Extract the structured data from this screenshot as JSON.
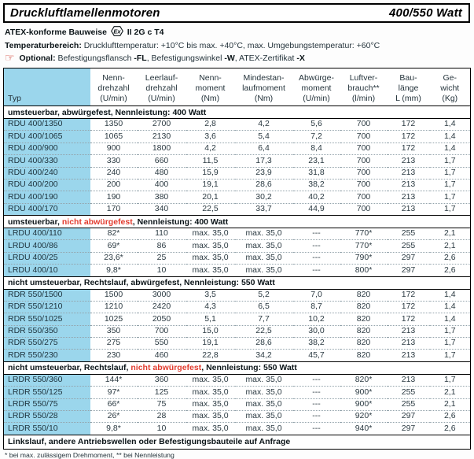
{
  "header": {
    "title": "Druckluftlamellenmotoren",
    "wattage": "400/550 Watt"
  },
  "info": {
    "atex": {
      "prefix": "ATEX-konforme Bauweise",
      "ex_symbol": "Ex",
      "suffix": "II 2G c T4"
    },
    "temp": {
      "label": "Temperaturbereich:",
      "text": "Drucklufttemperatur: +10°C bis max. +40°C, max. Umgebungstemperatur: +60°C"
    },
    "optional": {
      "icon": "pointing-hand",
      "label": "Optional:",
      "parts": [
        {
          "t": "Befestigungsflansch "
        },
        {
          "t": "-FL",
          "bold": true
        },
        {
          "t": ", Befestigungswinkel "
        },
        {
          "t": "-W",
          "bold": true
        },
        {
          "t": ", ATEX-Zertifikat "
        },
        {
          "t": "-X",
          "bold": true
        }
      ]
    }
  },
  "colors": {
    "accent_blue": "#9bd6ec",
    "alert_red": "#e23b2e"
  },
  "table": {
    "columns": [
      {
        "key": "typ",
        "label": "Typ"
      },
      {
        "key": "nenndrehzahl",
        "label": "Nenn-\ndrehzahl\n(U/min)"
      },
      {
        "key": "leerlaufdrehzahl",
        "label": "Leerlauf-\ndrehzahl\n(U/min)"
      },
      {
        "key": "nennmoment",
        "label": "Nenn-\nmoment\n(Nm)"
      },
      {
        "key": "mindestanlaufmoment",
        "label": "Mindestan-\nlaufmoment\n(Nm)"
      },
      {
        "key": "abwuergemoment",
        "label": "Abwürge-\nmoment\n(U/min)"
      },
      {
        "key": "luftverbrauch",
        "label": "Luftver-\nbrauch**\n(l/min)"
      },
      {
        "key": "baulaenge",
        "label": "Bau-\nlänge\nL (mm)"
      },
      {
        "key": "gewicht",
        "label": "Ge-\nwicht\n(Kg)"
      }
    ],
    "sections": [
      {
        "label_parts": [
          {
            "t": "umsteuerbar, abwürgefest, Nennleistung: 400 Watt"
          }
        ],
        "rows": [
          {
            "typ": "RDU 400/1350",
            "values": [
              "1350",
              "2700",
              "2,8",
              "4,2",
              "5,6",
              "700",
              "172",
              "1,4"
            ]
          },
          {
            "typ": "RDU 400/1065",
            "values": [
              "1065",
              "2130",
              "3,6",
              "5,4",
              "7,2",
              "700",
              "172",
              "1,4"
            ]
          },
          {
            "typ": "RDU 400/900",
            "values": [
              "900",
              "1800",
              "4,2",
              "6,4",
              "8,4",
              "700",
              "172",
              "1,4"
            ]
          },
          {
            "typ": "RDU 400/330",
            "values": [
              "330",
              "660",
              "11,5",
              "17,3",
              "23,1",
              "700",
              "213",
              "1,7"
            ]
          },
          {
            "typ": "RDU 400/240",
            "values": [
              "240",
              "480",
              "15,9",
              "23,9",
              "31,8",
              "700",
              "213",
              "1,7"
            ]
          },
          {
            "typ": "RDU 400/200",
            "values": [
              "200",
              "400",
              "19,1",
              "28,6",
              "38,2",
              "700",
              "213",
              "1,7"
            ]
          },
          {
            "typ": "RDU 400/190",
            "values": [
              "190",
              "380",
              "20,1",
              "30,2",
              "40,2",
              "700",
              "213",
              "1,7"
            ]
          },
          {
            "typ": "RDU 400/170",
            "values": [
              "170",
              "340",
              "22,5",
              "33,7",
              "44,9",
              "700",
              "213",
              "1,7"
            ]
          }
        ]
      },
      {
        "label_parts": [
          {
            "t": "umsteuerbar, "
          },
          {
            "t": "nicht abwürgefest",
            "red": true
          },
          {
            "t": ", Nennleistung: 400 Watt"
          }
        ],
        "rows": [
          {
            "typ": "LRDU 400/110",
            "values": [
              "82*",
              "110",
              "max. 35,0",
              "max. 35,0",
              "---",
              "770*",
              "255",
              "2,1"
            ]
          },
          {
            "typ": "LRDU 400/86",
            "values": [
              "69*",
              "86",
              "max. 35,0",
              "max. 35,0",
              "---",
              "770*",
              "255",
              "2,1"
            ]
          },
          {
            "typ": "LRDU 400/25",
            "values": [
              "23,6*",
              "25",
              "max. 35,0",
              "max. 35,0",
              "---",
              "790*",
              "297",
              "2,6"
            ]
          },
          {
            "typ": "LRDU 400/10",
            "values": [
              "9,8*",
              "10",
              "max. 35,0",
              "max. 35,0",
              "---",
              "800*",
              "297",
              "2,6"
            ]
          }
        ]
      },
      {
        "label_parts": [
          {
            "t": "nicht umsteuerbar, Rechtslauf, abwürgefest, Nennleistung: 550 Watt"
          }
        ],
        "rows": [
          {
            "typ": "RDR 550/1500",
            "values": [
              "1500",
              "3000",
              "3,5",
              "5,2",
              "7,0",
              "820",
              "172",
              "1,4"
            ]
          },
          {
            "typ": "RDR 550/1210",
            "values": [
              "1210",
              "2420",
              "4,3",
              "6,5",
              "8,7",
              "820",
              "172",
              "1,4"
            ]
          },
          {
            "typ": "RDR 550/1025",
            "values": [
              "1025",
              "2050",
              "5,1",
              "7,7",
              "10,2",
              "820",
              "172",
              "1,4"
            ]
          },
          {
            "typ": "RDR 550/350",
            "values": [
              "350",
              "700",
              "15,0",
              "22,5",
              "30,0",
              "820",
              "213",
              "1,7"
            ]
          },
          {
            "typ": "RDR 550/275",
            "values": [
              "275",
              "550",
              "19,1",
              "28,6",
              "38,2",
              "820",
              "213",
              "1,7"
            ]
          },
          {
            "typ": "RDR 550/230",
            "values": [
              "230",
              "460",
              "22,8",
              "34,2",
              "45,7",
              "820",
              "213",
              "1,7"
            ]
          }
        ]
      },
      {
        "label_parts": [
          {
            "t": "nicht umsteuerbar, Rechtslauf, "
          },
          {
            "t": "nicht abwürgefest",
            "red": true
          },
          {
            "t": ", Nennleistung: 550 Watt"
          }
        ],
        "rows": [
          {
            "typ": "LRDR 550/360",
            "values": [
              "144*",
              "360",
              "max. 35,0",
              "max. 35,0",
              "---",
              "820*",
              "213",
              "1,7"
            ]
          },
          {
            "typ": "LRDR 550/125",
            "values": [
              "97*",
              "125",
              "max. 35,0",
              "max. 35,0",
              "---",
              "900*",
              "255",
              "2,1"
            ]
          },
          {
            "typ": "LRDR 550/75",
            "values": [
              "66*",
              "75",
              "max. 35,0",
              "max. 35,0",
              "---",
              "900*",
              "255",
              "2,1"
            ]
          },
          {
            "typ": "LRDR 550/28",
            "values": [
              "26*",
              "28",
              "max. 35,0",
              "max. 35,0",
              "---",
              "920*",
              "297",
              "2,6"
            ]
          },
          {
            "typ": "LRDR 550/10",
            "values": [
              "9,8*",
              "10",
              "max. 35,0",
              "max. 35,0",
              "---",
              "940*",
              "297",
              "2,6"
            ]
          }
        ]
      }
    ],
    "footer_row": "Linkslauf, andere Antriebswellen oder Befestigungsbauteile auf Anfrage"
  },
  "footnote": "* bei max. zulässigem Drehmoment, ** bei Nennleistung"
}
